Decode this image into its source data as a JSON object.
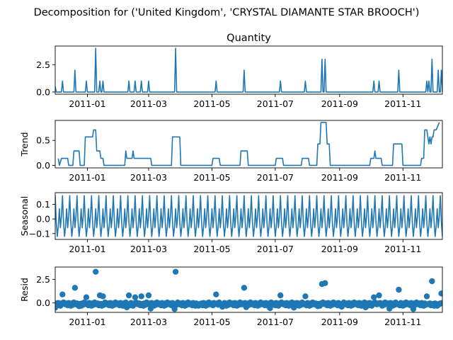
{
  "figure": {
    "suptitle": "Decomposition for ('United Kingdom', 'CRYSTAL DIAMANTE STAR BROOCH')"
  },
  "colors": {
    "series": "#1f77b4",
    "axes": "#000000",
    "background": "#ffffff"
  },
  "chart_data": [
    {
      "type": "line",
      "title": "Quantity",
      "ylabel": "",
      "x_range": [
        "2010-12-01",
        "2011-12-09"
      ],
      "xticks": [
        "2011-01",
        "2011-03",
        "2011-05",
        "2011-07",
        "2011-09",
        "2011-11"
      ],
      "ylim": [
        -0.2,
        4.2
      ],
      "yticks": [
        "0.0",
        "2.5"
      ],
      "baseline": 0,
      "spikes": [
        {
          "x": "2010-12-01",
          "y": 0.5
        },
        {
          "x": "2010-12-08",
          "y": 1.0
        },
        {
          "x": "2010-12-20",
          "y": 2.0
        },
        {
          "x": "2010-12-31",
          "y": 1.0
        },
        {
          "x": "2011-01-09",
          "y": 4.0
        },
        {
          "x": "2011-01-13",
          "y": 1.0
        },
        {
          "x": "2011-01-16",
          "y": 1.0
        },
        {
          "x": "2011-02-10",
          "y": 1.0
        },
        {
          "x": "2011-02-16",
          "y": 1.0
        },
        {
          "x": "2011-02-22",
          "y": 1.0
        },
        {
          "x": "2011-03-01",
          "y": 1.0
        },
        {
          "x": "2011-03-27",
          "y": 4.0
        },
        {
          "x": "2011-05-05",
          "y": 1.0
        },
        {
          "x": "2011-06-01",
          "y": 2.0
        },
        {
          "x": "2011-07-06",
          "y": 1.0
        },
        {
          "x": "2011-07-30",
          "y": 1.0
        },
        {
          "x": "2011-08-15",
          "y": 3.0
        },
        {
          "x": "2011-08-18",
          "y": 3.0
        },
        {
          "x": "2011-10-04",
          "y": 1.0
        },
        {
          "x": "2011-10-09",
          "y": 1.0
        },
        {
          "x": "2011-10-28",
          "y": 2.0
        },
        {
          "x": "2011-11-24",
          "y": 1.0
        },
        {
          "x": "2011-11-26",
          "y": 1.0
        },
        {
          "x": "2011-11-29",
          "y": 3.0
        },
        {
          "x": "2011-12-05",
          "y": 2.0
        },
        {
          "x": "2011-12-08",
          "y": 2.0
        }
      ]
    },
    {
      "type": "line",
      "title": "",
      "ylabel": "Trend",
      "x_range": [
        "2010-12-01",
        "2011-12-09"
      ],
      "xticks": [
        "2011-01",
        "2011-03",
        "2011-05",
        "2011-07",
        "2011-09",
        "2011-11"
      ],
      "ylim": [
        -0.05,
        0.9
      ],
      "yticks": [
        "0.0",
        "0.5"
      ],
      "points": [
        [
          "2010-12-04",
          0.14
        ],
        [
          "2010-12-05",
          0.0
        ],
        [
          "2010-12-07",
          0.14
        ],
        [
          "2010-12-13",
          0.14
        ],
        [
          "2010-12-14",
          0.0
        ],
        [
          "2010-12-18",
          0.0
        ],
        [
          "2010-12-19",
          0.29
        ],
        [
          "2010-12-24",
          0.29
        ],
        [
          "2010-12-25",
          0.0
        ],
        [
          "2010-12-29",
          0.0
        ],
        [
          "2010-12-30",
          0.57
        ],
        [
          "2011-01-06",
          0.57
        ],
        [
          "2011-01-07",
          0.71
        ],
        [
          "2011-01-09",
          0.71
        ],
        [
          "2011-01-10",
          0.29
        ],
        [
          "2011-01-13",
          0.29
        ],
        [
          "2011-01-14",
          0.14
        ],
        [
          "2011-01-16",
          0.14
        ],
        [
          "2011-01-17",
          0.0
        ],
        [
          "2011-02-06",
          0.0
        ],
        [
          "2011-02-07",
          0.29
        ],
        [
          "2011-02-08",
          0.14
        ],
        [
          "2011-02-13",
          0.14
        ],
        [
          "2011-02-14",
          0.29
        ],
        [
          "2011-02-15",
          0.14
        ],
        [
          "2011-03-03",
          0.14
        ],
        [
          "2011-03-04",
          0.0
        ],
        [
          "2011-03-23",
          0.0
        ],
        [
          "2011-03-24",
          0.57
        ],
        [
          "2011-03-31",
          0.57
        ],
        [
          "2011-04-01",
          0.0
        ],
        [
          "2011-05-01",
          0.0
        ],
        [
          "2011-05-02",
          0.14
        ],
        [
          "2011-05-08",
          0.14
        ],
        [
          "2011-05-09",
          0.0
        ],
        [
          "2011-05-28",
          0.0
        ],
        [
          "2011-05-29",
          0.29
        ],
        [
          "2011-06-04",
          0.29
        ],
        [
          "2011-06-05",
          0.0
        ],
        [
          "2011-07-01",
          0.0
        ],
        [
          "2011-07-02",
          0.14
        ],
        [
          "2011-07-08",
          0.14
        ],
        [
          "2011-07-09",
          0.0
        ],
        [
          "2011-07-26",
          0.0
        ],
        [
          "2011-07-27",
          0.14
        ],
        [
          "2011-08-02",
          0.14
        ],
        [
          "2011-08-03",
          0.0
        ],
        [
          "2011-08-10",
          0.0
        ],
        [
          "2011-08-11",
          0.43
        ],
        [
          "2011-08-13",
          0.43
        ],
        [
          "2011-08-14",
          0.86
        ],
        [
          "2011-08-19",
          0.86
        ],
        [
          "2011-08-20",
          0.43
        ],
        [
          "2011-08-22",
          0.43
        ],
        [
          "2011-08-23",
          0.0
        ],
        [
          "2011-09-30",
          0.0
        ],
        [
          "2011-10-01",
          0.14
        ],
        [
          "2011-10-04",
          0.14
        ],
        [
          "2011-10-05",
          0.29
        ],
        [
          "2011-10-06",
          0.14
        ],
        [
          "2011-10-11",
          0.14
        ],
        [
          "2011-10-12",
          0.0
        ],
        [
          "2011-10-22",
          0.0
        ],
        [
          "2011-10-23",
          0.43
        ],
        [
          "2011-10-31",
          0.43
        ],
        [
          "2011-11-01",
          0.0
        ],
        [
          "2011-11-18",
          0.0
        ],
        [
          "2011-11-19",
          0.14
        ],
        [
          "2011-11-21",
          0.14
        ],
        [
          "2011-11-22",
          0.71
        ],
        [
          "2011-11-24",
          0.71
        ],
        [
          "2011-11-25",
          0.57
        ],
        [
          "2011-11-26",
          0.43
        ],
        [
          "2011-11-27",
          0.57
        ],
        [
          "2011-11-28",
          0.43
        ],
        [
          "2011-11-29",
          0.57
        ],
        [
          "2011-11-30",
          0.57
        ],
        [
          "2011-12-01",
          0.71
        ],
        [
          "2011-12-03",
          0.71
        ],
        [
          "2011-12-06",
          0.86
        ]
      ]
    },
    {
      "type": "line",
      "title": "",
      "ylabel": "Seasonal",
      "x_range": [
        "2010-12-01",
        "2011-12-09"
      ],
      "xticks": [
        "2011-01",
        "2011-03",
        "2011-05",
        "2011-07",
        "2011-09",
        "2011-11"
      ],
      "ylim": [
        -0.14,
        0.18
      ],
      "yticks": [
        "−0.1",
        "0.0",
        "0.1"
      ],
      "period_days": 7,
      "weekly_pattern": [
        0.16,
        -0.02,
        -0.12,
        -0.05,
        0.07,
        -0.06,
        0.02
      ]
    },
    {
      "type": "scatter",
      "title": "",
      "ylabel": "Resid",
      "x_range": [
        "2010-12-01",
        "2011-12-09"
      ],
      "xticks": [
        "2011-01",
        "2011-03",
        "2011-05",
        "2011-07",
        "2011-09",
        "2011-11"
      ],
      "ylim": [
        -1.0,
        3.8
      ],
      "yticks": [
        "0.0",
        "2.5"
      ],
      "baseline": 0,
      "outliers": [
        {
          "x": "2010-12-08",
          "y": 0.9
        },
        {
          "x": "2010-12-20",
          "y": 1.6
        },
        {
          "x": "2010-12-31",
          "y": 0.6
        },
        {
          "x": "2011-01-09",
          "y": 3.3
        },
        {
          "x": "2011-01-13",
          "y": 0.8
        },
        {
          "x": "2011-01-16",
          "y": 0.7
        },
        {
          "x": "2011-02-10",
          "y": 0.8
        },
        {
          "x": "2011-02-16",
          "y": 0.6
        },
        {
          "x": "2011-02-22",
          "y": 0.7
        },
        {
          "x": "2011-03-01",
          "y": 0.8
        },
        {
          "x": "2011-03-27",
          "y": 3.3
        },
        {
          "x": "2011-05-05",
          "y": 0.9
        },
        {
          "x": "2011-06-01",
          "y": 1.6
        },
        {
          "x": "2011-07-06",
          "y": 0.8
        },
        {
          "x": "2011-07-30",
          "y": 0.7
        },
        {
          "x": "2011-08-15",
          "y": 2.0
        },
        {
          "x": "2011-08-18",
          "y": 2.1
        },
        {
          "x": "2011-10-04",
          "y": 0.6
        },
        {
          "x": "2011-10-09",
          "y": 0.8
        },
        {
          "x": "2011-10-28",
          "y": 1.4
        },
        {
          "x": "2011-11-24",
          "y": 0.7
        },
        {
          "x": "2011-11-29",
          "y": 2.3
        },
        {
          "x": "2011-12-08",
          "y": 1.0
        }
      ]
    }
  ]
}
